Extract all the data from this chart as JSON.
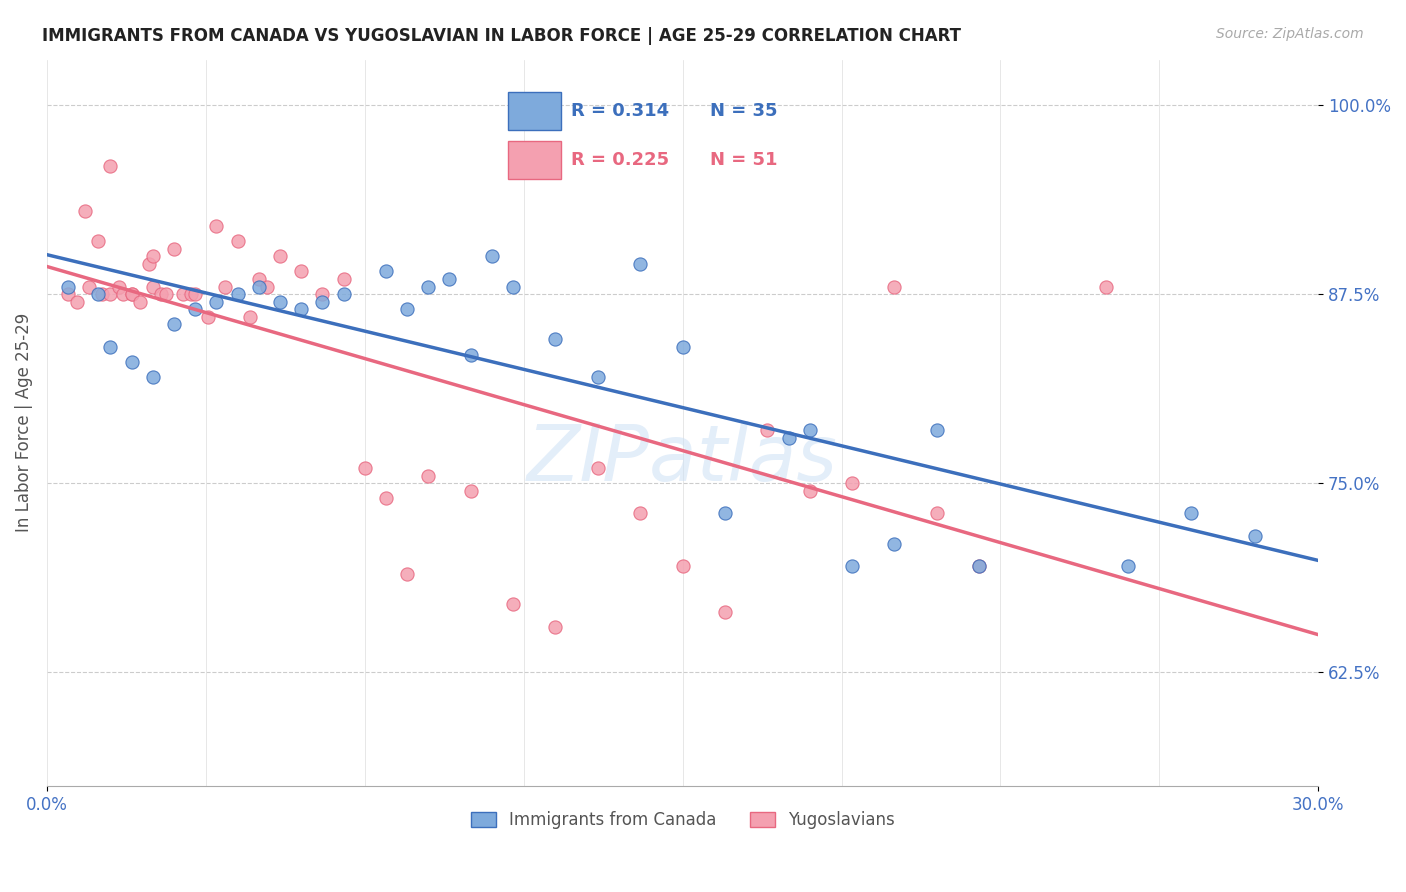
{
  "title": "IMMIGRANTS FROM CANADA VS YUGOSLAVIAN IN LABOR FORCE | AGE 25-29 CORRELATION CHART",
  "source": "Source: ZipAtlas.com",
  "ylabel": "In Labor Force | Age 25-29",
  "xlim": [
    0.0,
    0.3
  ],
  "ylim": [
    0.55,
    1.03
  ],
  "yticks": [
    0.625,
    0.75,
    0.875,
    1.0
  ],
  "ytick_labels": [
    "62.5%",
    "75.0%",
    "87.5%",
    "100.0%"
  ],
  "xtick_labels": [
    "0.0%",
    "30.0%"
  ],
  "legend_blue_R": "0.314",
  "legend_blue_N": "35",
  "legend_pink_R": "0.225",
  "legend_pink_N": "51",
  "color_blue": "#7eaadc",
  "color_pink": "#f4a0b0",
  "color_blue_line": "#3c6fbc",
  "color_pink_line": "#e86880",
  "color_axis_labels": "#4472c4",
  "watermark_zip": "ZIP",
  "watermark_atlas": "atlas",
  "blue_scatter_x": [
    0.005,
    0.012,
    0.015,
    0.02,
    0.025,
    0.03,
    0.035,
    0.04,
    0.045,
    0.05,
    0.055,
    0.06,
    0.065,
    0.07,
    0.08,
    0.085,
    0.09,
    0.095,
    0.1,
    0.105,
    0.11,
    0.12,
    0.13,
    0.14,
    0.15,
    0.16,
    0.175,
    0.18,
    0.19,
    0.2,
    0.21,
    0.22,
    0.255,
    0.27,
    0.285
  ],
  "blue_scatter_y": [
    0.88,
    0.875,
    0.84,
    0.83,
    0.82,
    0.855,
    0.865,
    0.87,
    0.875,
    0.88,
    0.87,
    0.865,
    0.87,
    0.875,
    0.89,
    0.865,
    0.88,
    0.885,
    0.835,
    0.9,
    0.88,
    0.845,
    0.82,
    0.895,
    0.84,
    0.73,
    0.78,
    0.785,
    0.695,
    0.71,
    0.785,
    0.695,
    0.695,
    0.73,
    0.715
  ],
  "pink_scatter_x": [
    0.005,
    0.007,
    0.009,
    0.01,
    0.012,
    0.013,
    0.015,
    0.015,
    0.017,
    0.018,
    0.02,
    0.02,
    0.022,
    0.024,
    0.025,
    0.025,
    0.027,
    0.028,
    0.03,
    0.032,
    0.034,
    0.035,
    0.038,
    0.04,
    0.042,
    0.045,
    0.048,
    0.05,
    0.052,
    0.055,
    0.06,
    0.065,
    0.07,
    0.075,
    0.08,
    0.085,
    0.09,
    0.1,
    0.11,
    0.12,
    0.13,
    0.14,
    0.15,
    0.16,
    0.17,
    0.18,
    0.19,
    0.2,
    0.21,
    0.22,
    0.25
  ],
  "pink_scatter_y": [
    0.875,
    0.87,
    0.93,
    0.88,
    0.91,
    0.875,
    0.875,
    0.96,
    0.88,
    0.875,
    0.875,
    0.875,
    0.87,
    0.895,
    0.88,
    0.9,
    0.875,
    0.875,
    0.905,
    0.875,
    0.875,
    0.875,
    0.86,
    0.92,
    0.88,
    0.91,
    0.86,
    0.885,
    0.88,
    0.9,
    0.89,
    0.875,
    0.885,
    0.76,
    0.74,
    0.69,
    0.755,
    0.745,
    0.67,
    0.655,
    0.76,
    0.73,
    0.695,
    0.665,
    0.785,
    0.745,
    0.75,
    0.88,
    0.73,
    0.695,
    0.88
  ]
}
